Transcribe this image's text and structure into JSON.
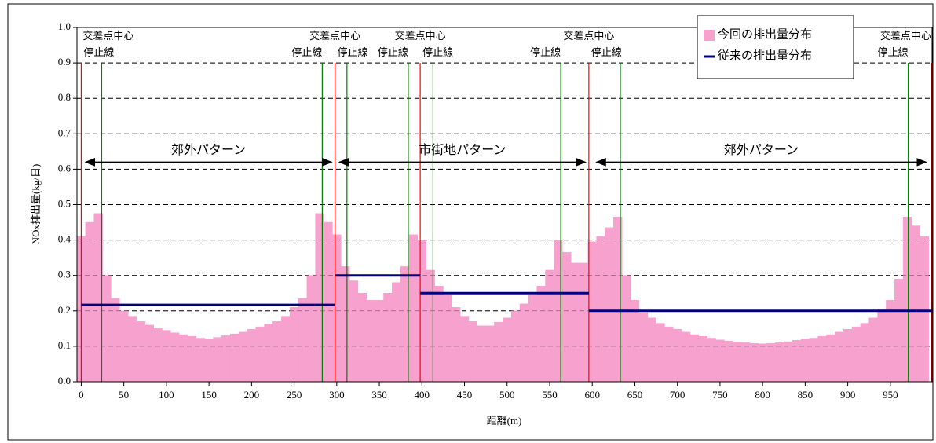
{
  "chart_data": {
    "type": "histogram",
    "ylabel": "NOx排出量(kg/日)",
    "xlabel": "距離(m)",
    "xlim": [
      -5,
      999
    ],
    "ylim": [
      0,
      1
    ],
    "xticks": [
      0,
      50,
      100,
      150,
      200,
      250,
      300,
      350,
      400,
      450,
      500,
      550,
      600,
      650,
      700,
      750,
      800,
      850,
      900,
      950
    ],
    "yticks": [
      {
        "value": 0,
        "label": "0.0"
      },
      0.1,
      0.2,
      0.3,
      0.4,
      0.5,
      0.6,
      0.7,
      0.8,
      0.9,
      {
        "value": 1,
        "label": "1.0"
      }
    ],
    "grid": true,
    "bins": [
      -5,
      5,
      15,
      25,
      35,
      45,
      55,
      65,
      75,
      85,
      95,
      105,
      115,
      125,
      135,
      145,
      155,
      165,
      175,
      185,
      195,
      205,
      215,
      225,
      235,
      245,
      255,
      265,
      275,
      285,
      295,
      305,
      315,
      325,
      335,
      345,
      355,
      365,
      375,
      385,
      395,
      405,
      415,
      425,
      435,
      445,
      455,
      465,
      475,
      485,
      495,
      505,
      515,
      525,
      535,
      545,
      555,
      565,
      575,
      585,
      595,
      605,
      615,
      625,
      635,
      645,
      655,
      665,
      675,
      685,
      695,
      705,
      715,
      725,
      735,
      745,
      755,
      765,
      775,
      785,
      795,
      805,
      815,
      825,
      835,
      845,
      855,
      865,
      875,
      885,
      895,
      905,
      915,
      925,
      935,
      945,
      955,
      965,
      975,
      985,
      995
    ],
    "series": [
      {
        "name": "今回の排出量分布",
        "color": "#f7a1cf",
        "values": [
          0.41,
          0.45,
          0.475,
          0.3,
          0.235,
          0.2,
          0.185,
          0.17,
          0.16,
          0.15,
          0.145,
          0.138,
          0.133,
          0.128,
          0.123,
          0.12,
          0.125,
          0.13,
          0.135,
          0.14,
          0.148,
          0.155,
          0.163,
          0.17,
          0.185,
          0.21,
          0.235,
          0.3,
          0.475,
          0.45,
          0.415,
          0.325,
          0.285,
          0.25,
          0.23,
          0.23,
          0.25,
          0.28,
          0.325,
          0.415,
          0.4,
          0.315,
          0.27,
          0.245,
          0.21,
          0.185,
          0.17,
          0.158,
          0.158,
          0.168,
          0.18,
          0.2,
          0.22,
          0.245,
          0.27,
          0.315,
          0.4,
          0.365,
          0.335,
          0.335,
          0.395,
          0.41,
          0.435,
          0.465,
          0.3,
          0.23,
          0.195,
          0.18,
          0.165,
          0.155,
          0.148,
          0.14,
          0.133,
          0.128,
          0.123,
          0.118,
          0.115,
          0.112,
          0.11,
          0.108,
          0.107,
          0.108,
          0.11,
          0.113,
          0.117,
          0.12,
          0.123,
          0.128,
          0.133,
          0.14,
          0.148,
          0.155,
          0.165,
          0.18,
          0.205,
          0.23,
          0.29,
          0.465,
          0.44,
          0.41
        ]
      }
    ],
    "reference": {
      "name": "従来の排出量分布",
      "color": "#000080",
      "segments": [
        {
          "x": [
            0,
            298
          ],
          "value": 0.217
        },
        {
          "x": [
            298,
            398
          ],
          "value": 0.3
        },
        {
          "x": [
            398,
            596
          ],
          "value": 0.25
        },
        {
          "x": [
            596,
            999
          ],
          "value": 0.2
        }
      ]
    },
    "intersections": {
      "label": "交差点中心",
      "color": "#ff0000",
      "x": [
        0,
        298,
        398,
        596,
        998
      ]
    },
    "stop_lines": {
      "label": "停止線",
      "color": "#008000",
      "x": [
        24,
        283,
        312,
        384,
        413,
        563,
        633,
        971
      ]
    },
    "patterns": [
      {
        "label": "郊外パターン",
        "x": [
          5,
          294
        ],
        "y": 0.62
      },
      {
        "label": "市街地パターン",
        "x": [
          303,
          592
        ],
        "y": 0.62
      },
      {
        "label": "郊外パターン",
        "x": [
          605,
          992
        ],
        "y": 0.62
      }
    ]
  }
}
